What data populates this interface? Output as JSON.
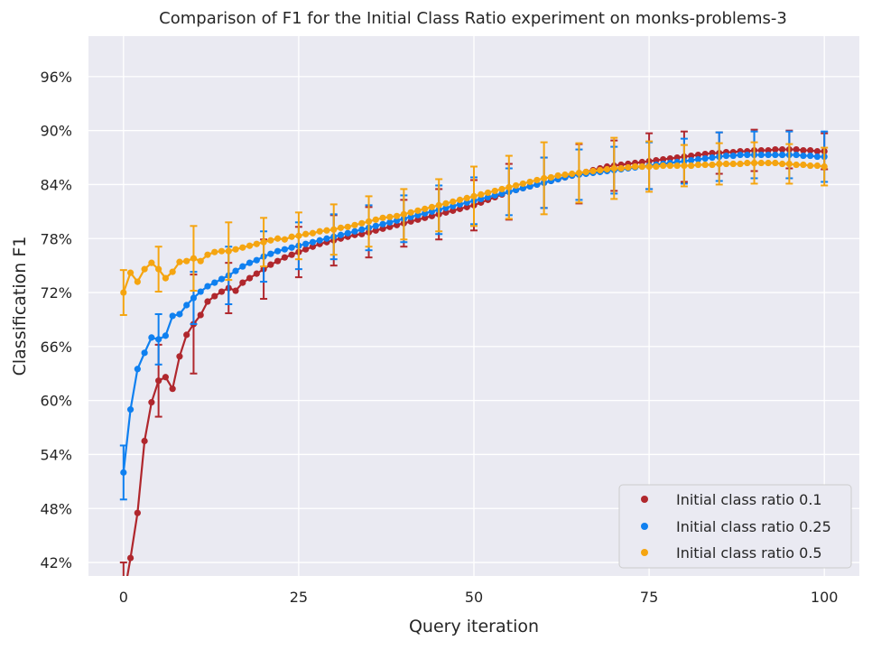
{
  "chart_data": {
    "type": "line",
    "title": "Comparison of F1 for the Initial Class Ratio experiment on monks-problems-3",
    "xlabel": "Query iteration",
    "ylabel": "Classification F1",
    "xlim": [
      -5,
      105
    ],
    "ylim": [
      40.5,
      100.5
    ],
    "x_ticks": [
      0,
      25,
      50,
      75,
      100
    ],
    "x_tick_labels": [
      "0",
      "25",
      "50",
      "75",
      "100"
    ],
    "y_ticks": [
      42,
      48,
      54,
      60,
      66,
      72,
      78,
      84,
      90,
      96
    ],
    "y_tick_labels": [
      "42%",
      "48%",
      "54%",
      "60%",
      "66%",
      "72%",
      "78%",
      "84%",
      "90%",
      "96%"
    ],
    "grid": true,
    "legend_position": "lower-right",
    "error_bar_every": 5,
    "series": [
      {
        "name": "Initial class ratio 0.1",
        "color": "#b0272d",
        "x": [
          0,
          1,
          2,
          3,
          4,
          5,
          6,
          7,
          8,
          9,
          10,
          11,
          12,
          13,
          14,
          15,
          16,
          17,
          18,
          19,
          20,
          21,
          22,
          23,
          24,
          25,
          26,
          27,
          28,
          29,
          30,
          31,
          32,
          33,
          34,
          35,
          36,
          37,
          38,
          39,
          40,
          41,
          42,
          43,
          44,
          45,
          46,
          47,
          48,
          49,
          50,
          51,
          52,
          53,
          54,
          55,
          56,
          57,
          58,
          59,
          60,
          61,
          62,
          63,
          64,
          65,
          66,
          67,
          68,
          69,
          70,
          71,
          72,
          73,
          74,
          75,
          76,
          77,
          78,
          79,
          80,
          81,
          82,
          83,
          84,
          85,
          86,
          87,
          88,
          89,
          90,
          91,
          92,
          93,
          94,
          95,
          96,
          97,
          98,
          99,
          100
        ],
        "values": [
          38.0,
          42.5,
          47.5,
          55.5,
          59.8,
          62.2,
          62.6,
          61.3,
          64.9,
          67.3,
          68.5,
          69.5,
          71.0,
          71.6,
          72.1,
          72.5,
          72.2,
          73.1,
          73.6,
          74.1,
          74.6,
          75.1,
          75.5,
          75.9,
          76.2,
          76.5,
          76.8,
          77.1,
          77.4,
          77.6,
          77.8,
          78.0,
          78.2,
          78.4,
          78.5,
          78.7,
          78.9,
          79.1,
          79.3,
          79.5,
          79.7,
          79.9,
          80.1,
          80.3,
          80.5,
          80.7,
          80.9,
          81.1,
          81.3,
          81.5,
          81.7,
          82.0,
          82.3,
          82.6,
          82.9,
          83.2,
          83.4,
          83.6,
          83.8,
          84.0,
          84.2,
          84.4,
          84.6,
          84.8,
          85.0,
          85.2,
          85.4,
          85.6,
          85.8,
          86.0,
          86.1,
          86.2,
          86.3,
          86.4,
          86.5,
          86.6,
          86.7,
          86.8,
          86.9,
          87.0,
          87.1,
          87.2,
          87.3,
          87.4,
          87.5,
          87.5,
          87.6,
          87.6,
          87.7,
          87.7,
          87.8,
          87.8,
          87.8,
          87.9,
          87.9,
          87.9,
          87.9,
          87.8,
          87.8,
          87.7,
          87.7
        ],
        "errors": {
          "0": 4.0,
          "5": 4.0,
          "10": 5.5,
          "15": 2.8,
          "20": 3.3,
          "25": 2.8,
          "30": 2.8,
          "35": 2.8,
          "40": 2.6,
          "45": 2.8,
          "50": 2.8,
          "55": 3.1,
          "60": 2.8,
          "65": 3.3,
          "70": 2.8,
          "75": 3.1,
          "80": 2.8,
          "85": 2.3,
          "90": 2.3,
          "95": 2.1,
          "100": 2.0
        }
      },
      {
        "name": "Initial class ratio 0.25",
        "color": "#0f80f0",
        "x": [
          0,
          1,
          2,
          3,
          4,
          5,
          6,
          7,
          8,
          9,
          10,
          11,
          12,
          13,
          14,
          15,
          16,
          17,
          18,
          19,
          20,
          21,
          22,
          23,
          24,
          25,
          26,
          27,
          28,
          29,
          30,
          31,
          32,
          33,
          34,
          35,
          36,
          37,
          38,
          39,
          40,
          41,
          42,
          43,
          44,
          45,
          46,
          47,
          48,
          49,
          50,
          51,
          52,
          53,
          54,
          55,
          56,
          57,
          58,
          59,
          60,
          61,
          62,
          63,
          64,
          65,
          66,
          67,
          68,
          69,
          70,
          71,
          72,
          73,
          74,
          75,
          76,
          77,
          78,
          79,
          80,
          81,
          82,
          83,
          84,
          85,
          86,
          87,
          88,
          89,
          90,
          91,
          92,
          93,
          94,
          95,
          96,
          97,
          98,
          99,
          100
        ],
        "values": [
          52.0,
          59.0,
          63.5,
          65.3,
          67.0,
          66.8,
          67.2,
          69.4,
          69.6,
          70.6,
          71.4,
          72.1,
          72.7,
          73.1,
          73.5,
          73.9,
          74.4,
          74.9,
          75.3,
          75.6,
          76.0,
          76.3,
          76.6,
          76.8,
          77.0,
          77.2,
          77.4,
          77.6,
          77.8,
          78.0,
          78.2,
          78.4,
          78.6,
          78.8,
          79.0,
          79.2,
          79.4,
          79.6,
          79.8,
          80.0,
          80.2,
          80.4,
          80.6,
          80.8,
          81.0,
          81.2,
          81.4,
          81.6,
          81.8,
          82.0,
          82.2,
          82.4,
          82.6,
          82.8,
          83.0,
          83.2,
          83.4,
          83.6,
          83.8,
          84.0,
          84.2,
          84.4,
          84.6,
          84.8,
          85.0,
          85.1,
          85.2,
          85.3,
          85.4,
          85.5,
          85.6,
          85.7,
          85.8,
          85.9,
          86.0,
          86.1,
          86.2,
          86.3,
          86.4,
          86.5,
          86.6,
          86.7,
          86.8,
          86.9,
          87.0,
          87.1,
          87.2,
          87.2,
          87.3,
          87.3,
          87.3,
          87.3,
          87.3,
          87.3,
          87.3,
          87.3,
          87.3,
          87.2,
          87.2,
          87.1,
          87.1
        ],
        "errors": {
          "0": 3.0,
          "5": 2.8,
          "10": 2.9,
          "15": 3.2,
          "20": 2.8,
          "25": 2.6,
          "30": 2.5,
          "35": 2.5,
          "40": 2.6,
          "45": 2.7,
          "50": 2.6,
          "55": 2.6,
          "60": 2.8,
          "65": 2.8,
          "70": 2.6,
          "75": 2.6,
          "80": 2.5,
          "85": 2.7,
          "90": 2.6,
          "95": 2.6,
          "100": 2.8
        }
      },
      {
        "name": "Initial class ratio 0.5",
        "color": "#f5a511",
        "x": [
          0,
          1,
          2,
          3,
          4,
          5,
          6,
          7,
          8,
          9,
          10,
          11,
          12,
          13,
          14,
          15,
          16,
          17,
          18,
          19,
          20,
          21,
          22,
          23,
          24,
          25,
          26,
          27,
          28,
          29,
          30,
          31,
          32,
          33,
          34,
          35,
          36,
          37,
          38,
          39,
          40,
          41,
          42,
          43,
          44,
          45,
          46,
          47,
          48,
          49,
          50,
          51,
          52,
          53,
          54,
          55,
          56,
          57,
          58,
          59,
          60,
          61,
          62,
          63,
          64,
          65,
          66,
          67,
          68,
          69,
          70,
          71,
          72,
          73,
          74,
          75,
          76,
          77,
          78,
          79,
          80,
          81,
          82,
          83,
          84,
          85,
          86,
          87,
          88,
          89,
          90,
          91,
          92,
          93,
          94,
          95,
          96,
          97,
          98,
          99,
          100
        ],
        "values": [
          72.0,
          74.2,
          73.2,
          74.6,
          75.3,
          74.6,
          73.6,
          74.3,
          75.4,
          75.5,
          75.8,
          75.5,
          76.2,
          76.5,
          76.6,
          76.6,
          76.8,
          77.0,
          77.2,
          77.4,
          77.6,
          77.8,
          78.0,
          77.9,
          78.2,
          78.3,
          78.5,
          78.6,
          78.8,
          78.9,
          79.0,
          79.2,
          79.3,
          79.5,
          79.7,
          79.9,
          80.1,
          80.3,
          80.4,
          80.5,
          80.7,
          80.9,
          81.1,
          81.3,
          81.5,
          81.7,
          81.9,
          82.1,
          82.3,
          82.5,
          82.7,
          82.9,
          83.1,
          83.3,
          83.5,
          83.7,
          83.9,
          84.1,
          84.3,
          84.5,
          84.7,
          84.8,
          85.0,
          85.1,
          85.2,
          85.3,
          85.4,
          85.5,
          85.6,
          85.7,
          85.8,
          85.8,
          85.9,
          86.0,
          86.0,
          86.0,
          86.0,
          86.1,
          86.1,
          86.1,
          86.1,
          86.1,
          86.2,
          86.2,
          86.2,
          86.3,
          86.3,
          86.3,
          86.3,
          86.4,
          86.4,
          86.4,
          86.4,
          86.4,
          86.3,
          86.3,
          86.2,
          86.2,
          86.1,
          86.1,
          86.0
        ],
        "errors": {
          "0": 2.5,
          "5": 2.5,
          "10": 3.6,
          "15": 3.2,
          "20": 2.7,
          "25": 2.6,
          "30": 2.8,
          "35": 2.8,
          "40": 2.8,
          "45": 2.9,
          "50": 3.3,
          "55": 3.5,
          "60": 4.0,
          "65": 3.3,
          "70": 3.4,
          "75": 2.8,
          "80": 2.3,
          "85": 2.3,
          "90": 2.3,
          "95": 2.2,
          "100": 2.1
        }
      }
    ]
  }
}
